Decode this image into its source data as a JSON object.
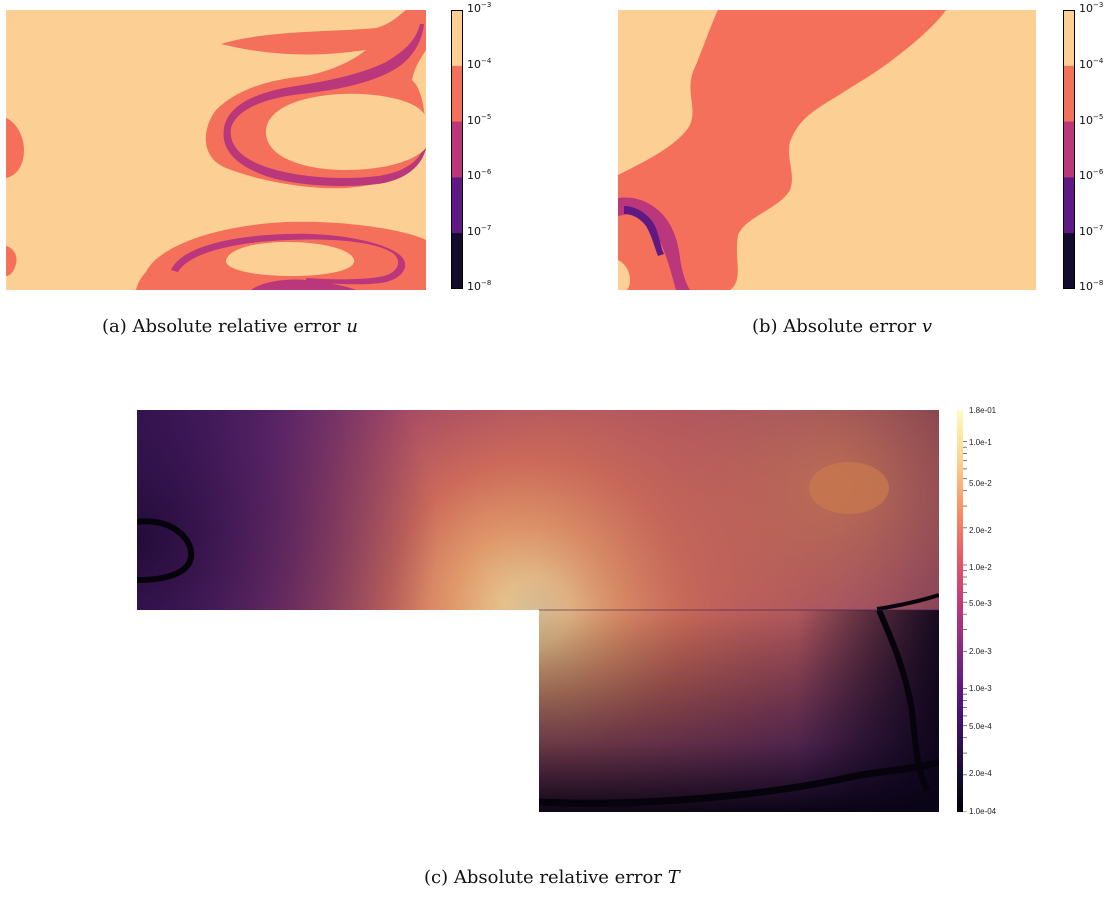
{
  "panels": {
    "a": {
      "caption_prefix": "(a) Absolute relative error ",
      "caption_var": "u"
    },
    "b": {
      "caption_prefix": "(b) Absolute error ",
      "caption_var": "v"
    },
    "c": {
      "caption_prefix": "(c) Absolute relative error ",
      "caption_var": "T"
    }
  },
  "colorbar_ab": {
    "ticks": [
      {
        "base": "10",
        "exp": "−3"
      },
      {
        "base": "10",
        "exp": "−4"
      },
      {
        "base": "10",
        "exp": "−5"
      },
      {
        "base": "10",
        "exp": "−6"
      },
      {
        "base": "10",
        "exp": "−7"
      },
      {
        "base": "10",
        "exp": "−8"
      }
    ],
    "colors": [
      "#fcd094",
      "#f5705a",
      "#b9377a",
      "#5e1a82",
      "#130c2c"
    ]
  },
  "colorbar_c": {
    "ticks": [
      "1.8e-01",
      "1.0e-1",
      "5.0e-2",
      "2.0e-2",
      "1.0e-2",
      "5.0e-3",
      "2.0e-3",
      "1.0e-3",
      "5.0e-4",
      "2.0e-4",
      "1.0e-04"
    ],
    "colors": [
      "#fcfdbf",
      "#fbd38f",
      "#f89063",
      "#e3566a",
      "#b8377b",
      "#7a2482",
      "#4a1178",
      "#1c0f3c",
      "#000004"
    ]
  },
  "background": "#ffffff"
}
